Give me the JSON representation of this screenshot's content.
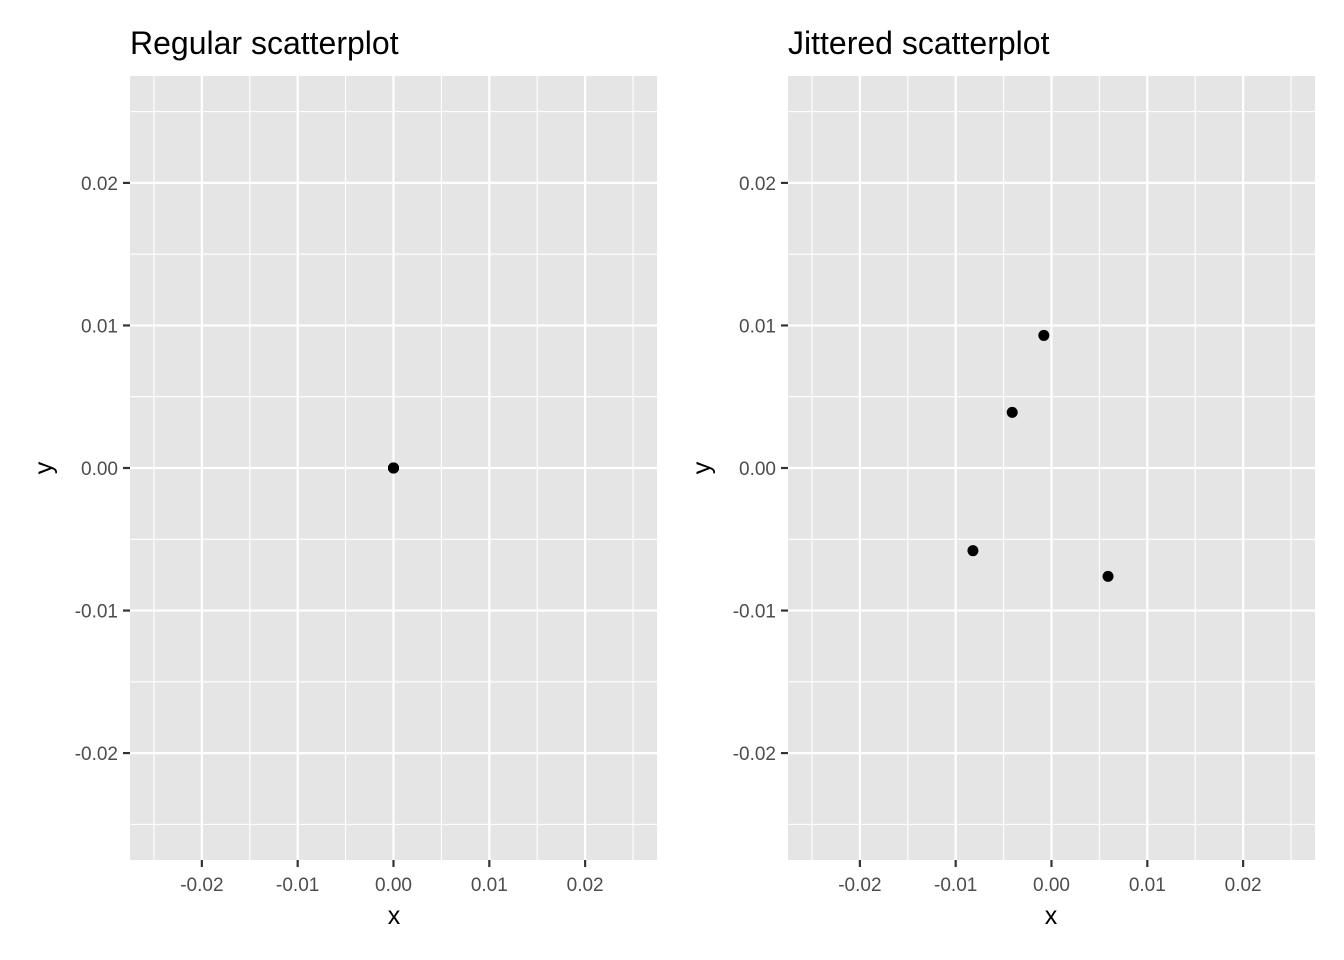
{
  "chart_data": [
    {
      "type": "scatter",
      "title": "Regular scatterplot",
      "xlabel": "x",
      "ylabel": "y",
      "xlim": [
        -0.0275,
        0.0275
      ],
      "ylim": [
        -0.0275,
        0.0275
      ],
      "x_ticks": [
        -0.02,
        -0.01,
        0.0,
        0.01,
        0.02
      ],
      "x_tick_labels": [
        "-0.02",
        "-0.01",
        "0.00",
        "0.01",
        "0.02"
      ],
      "y_ticks": [
        -0.02,
        -0.01,
        0.0,
        0.01,
        0.02
      ],
      "y_tick_labels": [
        "-0.02",
        "-0.01",
        "0.00",
        "0.01",
        "0.02"
      ],
      "grid": true,
      "panel_color": "#e5e5e5",
      "grid_color": "#ffffff",
      "point_color": "#000000",
      "points": [
        {
          "x": 0.0,
          "y": 0.0
        },
        {
          "x": 0.0,
          "y": 0.0
        },
        {
          "x": 0.0,
          "y": 0.0
        },
        {
          "x": 0.0,
          "y": 0.0
        }
      ]
    },
    {
      "type": "scatter",
      "title": "Jittered scatterplot",
      "xlabel": "x",
      "ylabel": "y",
      "xlim": [
        -0.0275,
        0.0275
      ],
      "ylim": [
        -0.0275,
        0.0275
      ],
      "x_ticks": [
        -0.02,
        -0.01,
        0.0,
        0.01,
        0.02
      ],
      "x_tick_labels": [
        "-0.02",
        "-0.01",
        "0.00",
        "0.01",
        "0.02"
      ],
      "y_ticks": [
        -0.02,
        -0.01,
        0.0,
        0.01,
        0.02
      ],
      "y_tick_labels": [
        "-0.02",
        "-0.01",
        "0.00",
        "0.01",
        "0.02"
      ],
      "grid": true,
      "panel_color": "#e5e5e5",
      "grid_color": "#ffffff",
      "point_color": "#000000",
      "points": [
        {
          "x": -0.0008,
          "y": 0.0093
        },
        {
          "x": -0.0041,
          "y": 0.0039
        },
        {
          "x": -0.0082,
          "y": -0.0058
        },
        {
          "x": 0.0059,
          "y": -0.0076
        }
      ]
    }
  ]
}
